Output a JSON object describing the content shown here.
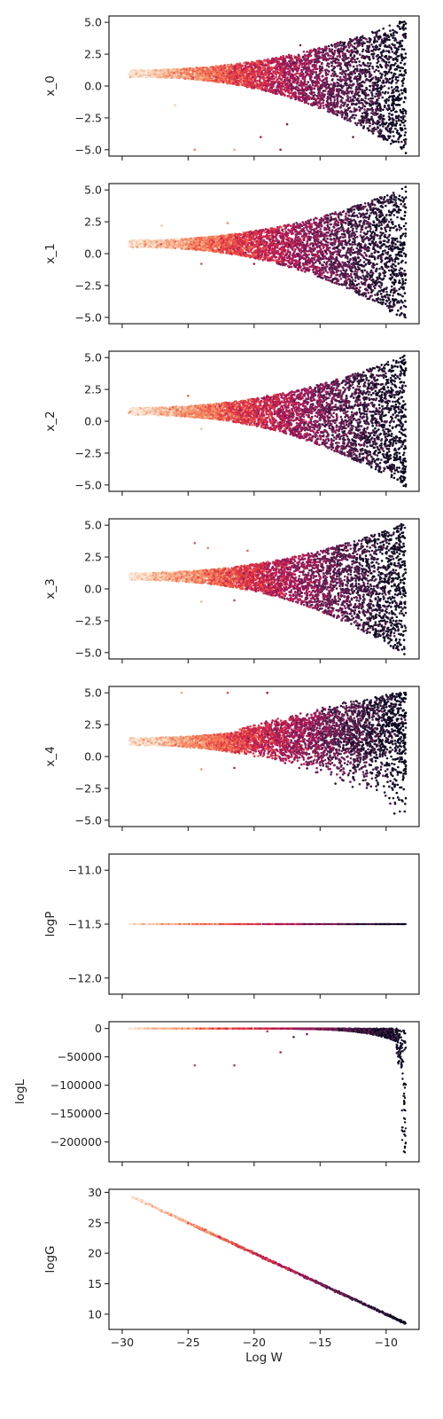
{
  "chart_data": [
    {
      "type": "scatter",
      "ylabel": "x_0",
      "xlim": [
        -31,
        -7.5
      ],
      "ylim": [
        -5.5,
        5.5
      ],
      "yticks": [
        5.0,
        2.5,
        0.0,
        -2.5,
        -5.0
      ],
      "ytick_labels": [
        "5.0",
        "2.5",
        "0.0",
        "−2.5",
        "−5.0"
      ],
      "shape": {
        "center": 1.0,
        "start_x": -29.5,
        "end_x": -8.5,
        "upper_end": 5.0,
        "lower_end": -5.0,
        "dip": 0.0
      },
      "outliers": [
        {
          "x": -24.5,
          "y": -5.0
        },
        {
          "x": -21.5,
          "y": -5.0
        },
        {
          "x": -19.5,
          "y": -4.0
        },
        {
          "x": -18.0,
          "y": -5.0
        },
        {
          "x": -17.5,
          "y": -3.0
        },
        {
          "x": -12.5,
          "y": -4.0
        },
        {
          "x": -26.0,
          "y": -1.5
        },
        {
          "x": -16.5,
          "y": 3.2
        }
      ]
    },
    {
      "type": "scatter",
      "ylabel": "x_1",
      "xlim": [
        -31,
        -7.5
      ],
      "ylim": [
        -5.5,
        5.5
      ],
      "yticks": [
        5.0,
        2.5,
        0.0,
        -2.5,
        -5.0
      ],
      "ytick_labels": [
        "5.0",
        "2.5",
        "0.0",
        "−2.5",
        "−5.0"
      ],
      "shape": {
        "center": 0.8,
        "start_x": -29.5,
        "end_x": -8.5,
        "upper_end": 5.0,
        "lower_end": -5.0,
        "dip": 0.0
      },
      "outliers": [
        {
          "x": -27.0,
          "y": 2.2
        },
        {
          "x": -24.0,
          "y": -0.8
        },
        {
          "x": -22.0,
          "y": 2.4
        },
        {
          "x": -20.0,
          "y": -0.8
        },
        {
          "x": -16.5,
          "y": 2.2
        }
      ]
    },
    {
      "type": "scatter",
      "ylabel": "x_2",
      "xlim": [
        -31,
        -7.5
      ],
      "ylim": [
        -5.5,
        5.5
      ],
      "yticks": [
        5.0,
        2.5,
        0.0,
        -2.5,
        -5.0
      ],
      "ytick_labels": [
        "5.0",
        "2.5",
        "0.0",
        "−2.5",
        "−5.0"
      ],
      "shape": {
        "center": 0.8,
        "start_x": -29.5,
        "end_x": -8.5,
        "upper_end": 5.0,
        "lower_end": -5.0,
        "dip": 0.0
      },
      "outliers": [
        {
          "x": -25.0,
          "y": 2.0
        },
        {
          "x": -24.0,
          "y": -0.6
        },
        {
          "x": -19.0,
          "y": 2.0
        },
        {
          "x": -16.5,
          "y": 2.2
        }
      ]
    },
    {
      "type": "scatter",
      "ylabel": "x_3",
      "xlim": [
        -31,
        -7.5
      ],
      "ylim": [
        -5.5,
        5.5
      ],
      "yticks": [
        5.0,
        2.5,
        0.0,
        -2.5,
        -5.0
      ],
      "ytick_labels": [
        "5.0",
        "2.5",
        "0.0",
        "−2.5",
        "−5.0"
      ],
      "shape": {
        "center": 1.0,
        "start_x": -29.5,
        "end_x": -8.5,
        "upper_end": 5.0,
        "lower_end": -5.0,
        "dip": 0.0
      },
      "outliers": [
        {
          "x": -24.0,
          "y": -1.0
        },
        {
          "x": -21.5,
          "y": -0.9
        },
        {
          "x": -24.5,
          "y": 3.6
        },
        {
          "x": -23.5,
          "y": 3.2
        },
        {
          "x": -20.5,
          "y": 3.0
        }
      ]
    },
    {
      "type": "scatter",
      "ylabel": "x_4",
      "xlim": [
        -31,
        -7.5
      ],
      "ylim": [
        -5.5,
        5.5
      ],
      "yticks": [
        5.0,
        2.5,
        0.0,
        -2.5,
        -5.0
      ],
      "ytick_labels": [
        "5.0",
        "2.5",
        "0.0",
        "−2.5",
        "−5.0"
      ],
      "shape": {
        "center": 1.2,
        "start_x": -29.5,
        "end_x": -8.5,
        "upper_end": 5.0,
        "lower_end": -5.0,
        "dip": 1.0
      },
      "outliers": [
        {
          "x": -24.0,
          "y": -1.0
        },
        {
          "x": -21.5,
          "y": -0.9
        },
        {
          "x": -25.5,
          "y": 5.0
        },
        {
          "x": -22.0,
          "y": 5.0
        },
        {
          "x": -19.0,
          "y": 5.0
        }
      ]
    },
    {
      "type": "scatter",
      "ylabel": "logP",
      "xlim": [
        -31,
        -7.5
      ],
      "ylim": [
        -12.15,
        -10.85
      ],
      "yticks": [
        -11.0,
        -11.5,
        -12.0
      ],
      "ytick_labels": [
        "−11.0",
        "−11.5",
        "−12.0"
      ],
      "constant_y": -11.5
    },
    {
      "type": "scatter",
      "ylabel": "logL",
      "xlim": [
        -31,
        -7.5
      ],
      "ylim": [
        -235000,
        12000
      ],
      "yticks": [
        0,
        -50000,
        -100000,
        -150000,
        -200000
      ],
      "ytick_labels": [
        "0",
        "−50000",
        "−100000",
        "−150000",
        "−200000"
      ],
      "min_value": -222000,
      "outliers": [
        {
          "x": -24.5,
          "y": -65000
        },
        {
          "x": -21.5,
          "y": -65000
        },
        {
          "x": -18.0,
          "y": -42000
        },
        {
          "x": -17.0,
          "y": -15000
        },
        {
          "x": -19.0,
          "y": -5000
        },
        {
          "x": -16.0,
          "y": -10000
        }
      ]
    },
    {
      "type": "scatter",
      "ylabel": "logG",
      "xlabel": "Log W",
      "xlim": [
        -31,
        -7.5
      ],
      "ylim": [
        7.5,
        30.5
      ],
      "yticks": [
        30,
        25,
        20,
        15,
        10
      ],
      "ytick_labels": [
        "30",
        "25",
        "20",
        "15",
        "10"
      ],
      "xticks": [
        -30,
        -25,
        -20,
        -15,
        -10
      ],
      "xtick_labels": [
        "−30",
        "−25",
        "−20",
        "−15",
        "−10"
      ],
      "line": {
        "x_start": -29.3,
        "y_start": 29.3,
        "x_end": -8.5,
        "y_end": 8.5
      }
    }
  ],
  "colors": {
    "colormap": [
      "#faebdd",
      "#f6b48f",
      "#f37651",
      "#e13342",
      "#ad1759",
      "#701f57",
      "#35193e",
      "#03051a"
    ],
    "axis": "#222222"
  }
}
